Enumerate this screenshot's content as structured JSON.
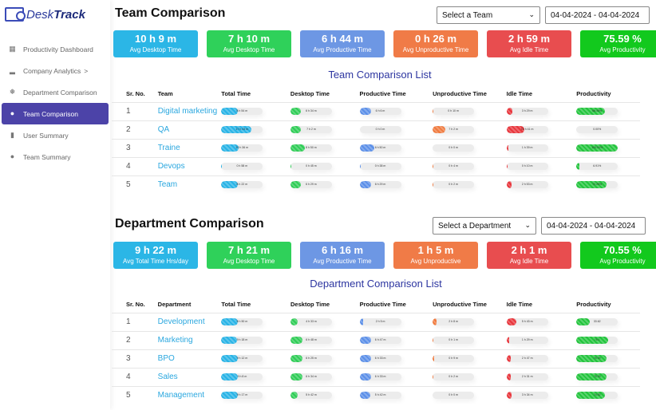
{
  "app": {
    "logo": "DeskTrack"
  },
  "sidebar": {
    "items": [
      {
        "label": "Productivity Dashboard",
        "icon": "grid-icon"
      },
      {
        "label": "Company Analytics",
        "icon": "factory-icon",
        "chevron": ">"
      },
      {
        "label": "Department Comparison",
        "icon": "cog-icon"
      },
      {
        "label": "Team Comparison",
        "icon": "users-icon",
        "active": true
      },
      {
        "label": "User Summary",
        "icon": "document-icon"
      },
      {
        "label": "Team Summary",
        "icon": "users-icon"
      }
    ]
  },
  "colors": {
    "total": "#27b3e6",
    "desktop": "#2ecc55",
    "productive": "#5b8fe8",
    "unproductive": "#f07a3e",
    "idle": "#e8363c",
    "productivity": "#22c43c"
  },
  "team": {
    "title": "Team Comparison",
    "select": "Select a Team",
    "date": "04-04-2024 - 04-04-2024",
    "cards": [
      {
        "value": "10 h 9 m",
        "label": "Avg Desktop Time",
        "color": "#2bb6e6"
      },
      {
        "value": "7 h 10 m",
        "label": "Avg Desktop Time",
        "color": "#2fd15a"
      },
      {
        "value": "6 h 44 m",
        "label": "Avg Productive Time",
        "color": "#6d97e4"
      },
      {
        "value": "0 h 26 m",
        "label": "Avg Unproductive Time",
        "color": "#f07b47"
      },
      {
        "value": "2 h 59 m",
        "label": "Avg Idle Time",
        "color": "#e84d4f"
      },
      {
        "value": "75.59 %",
        "label": "Avg Productivity",
        "color": "#12c91d"
      }
    ],
    "list_title": "Team Comparison List",
    "headers": [
      "Sr. No.",
      "Team",
      "Total Time",
      "Desktop Time",
      "Productive Time",
      "Unproductive Time",
      "Idle Time",
      "Productivity"
    ],
    "rows": [
      {
        "sr": "1",
        "name": "Digital marketing",
        "cells": [
          [
            "8 h 54 m",
            40
          ],
          [
            "6 h 34 m",
            25
          ],
          [
            "6 h 6 m",
            28
          ],
          [
            "0 h 10 m",
            1
          ],
          [
            "3 h 29 m",
            14
          ],
          [
            "68.48%",
            68
          ]
        ]
      },
      {
        "sr": "2",
        "name": "QA",
        "cells": [
          [
            "17 h 43 m",
            72
          ],
          [
            "7 h 2 m",
            25
          ],
          [
            "0 h 0 m",
            0
          ],
          [
            "7 h 2 m",
            30
          ],
          [
            "10 h 41 m",
            43
          ],
          [
            "0.00%",
            0
          ]
        ]
      },
      {
        "sr": "3",
        "name": "Traine",
        "cells": [
          [
            "10 h 36 m",
            42
          ],
          [
            "8 h 50 m",
            35
          ],
          [
            "6 h 50 m",
            35
          ],
          [
            "0 h 0 m",
            0
          ],
          [
            "1 h 39 m",
            4
          ],
          [
            "100.00%",
            100
          ]
        ]
      },
      {
        "sr": "4",
        "name": "Devops",
        "cells": [
          [
            "0 h 58 m",
            2
          ],
          [
            "0 h 45 m",
            2
          ],
          [
            "0 h 38 m",
            2
          ],
          [
            "0 h 4 m",
            1
          ],
          [
            "0 h 10 m",
            1
          ],
          [
            "6.91%",
            7
          ]
        ]
      },
      {
        "sr": "5",
        "name": "Team",
        "cells": [
          [
            "8 h 22 m",
            40
          ],
          [
            "6 h 29 m",
            25
          ],
          [
            "6 h 29 m",
            28
          ],
          [
            "0 h 2 m",
            1
          ],
          [
            "2 h 53 m",
            12
          ],
          [
            "72.25%",
            72
          ]
        ]
      }
    ]
  },
  "department": {
    "title": "Department Comparison",
    "select": "Select a Department",
    "date": "04-04-2024 - 04-04-2024",
    "cards": [
      {
        "value": "9 h 22 m",
        "label": "Avg Total Time Hrs/day",
        "color": "#2bb6e6"
      },
      {
        "value": "7 h 21 m",
        "label": "Avg Desktop Time",
        "color": "#2fd15a"
      },
      {
        "value": "6 h 16 m",
        "label": "Avg Productive Time",
        "color": "#6d97e4"
      },
      {
        "value": "1 h 5 m",
        "label": "Avg Unproductive",
        "color": "#f07b47"
      },
      {
        "value": "2 h 1 m",
        "label": "Avg Idle Time",
        "color": "#e84d4f"
      },
      {
        "value": "70.55 %",
        "label": "Avg Productivity",
        "color": "#12c91d"
      }
    ],
    "list_title": "Department Comparison List",
    "headers": [
      "Sr. No.",
      "Department",
      "Total Time",
      "Desktop Time",
      "Productive Time",
      "Unproductive Time",
      "Idle Time",
      "Productivity"
    ],
    "rows": [
      {
        "sr": "1",
        "name": "Development",
        "cells": [
          [
            "8 h 50 m",
            40
          ],
          [
            "4 h 33 m",
            18
          ],
          [
            "2 h 5 m",
            8
          ],
          [
            "2 h 8 m",
            10
          ],
          [
            "5 h 43 m",
            24
          ],
          [
            "33.62",
            33
          ]
        ]
      },
      {
        "sr": "2",
        "name": "Marketing",
        "cells": [
          [
            "9 h 18 m",
            38
          ],
          [
            "6 h 48 m",
            28
          ],
          [
            "6 h 47 m",
            28
          ],
          [
            "0 h 1 m",
            1
          ],
          [
            "1 h 29 m",
            6
          ],
          [
            "76.1",
            76
          ]
        ]
      },
      {
        "sr": "3",
        "name": "BPO",
        "cells": [
          [
            "9 h 12 m",
            40
          ],
          [
            "6 h 25 m",
            28
          ],
          [
            "6 h 33 m",
            28
          ],
          [
            "0 h 9 m",
            4
          ],
          [
            "2 h 47 m",
            10
          ],
          [
            "75.39",
            72
          ]
        ]
      },
      {
        "sr": "4",
        "name": "Sales",
        "cells": [
          [
            "9 h 8 m",
            40
          ],
          [
            "6 h 34 m",
            28
          ],
          [
            "6 h 33 m",
            28
          ],
          [
            "0 h 2 m",
            1
          ],
          [
            "2 h 31 m",
            10
          ],
          [
            "75.39",
            73
          ]
        ]
      },
      {
        "sr": "5",
        "name": "Management",
        "cells": [
          [
            "9 h 17 m",
            40
          ],
          [
            "5 h 42 m",
            18
          ],
          [
            "5 h 42 m",
            25
          ],
          [
            "0 h 0 m",
            0
          ],
          [
            "3 h 34 m",
            12
          ],
          [
            "74.52",
            68
          ]
        ]
      }
    ]
  }
}
